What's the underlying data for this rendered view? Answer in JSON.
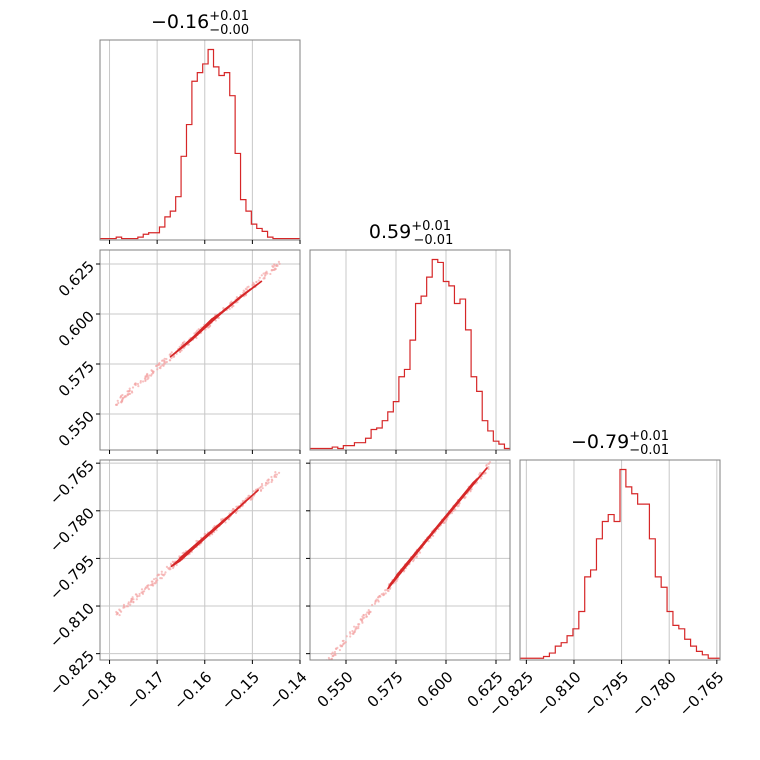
{
  "colors": {
    "line": "#d62728",
    "fill": "#f2b8b9",
    "grid": "#c8c8c8",
    "frame": "#808080",
    "points": "#f3a6a7"
  },
  "chart_data": {
    "type": "corner",
    "parameters": [
      {
        "median": "0.16",
        "median_sign": "−",
        "plus": "+0.01",
        "minus": "−0.00",
        "range": [
          -0.182,
          -0.14
        ],
        "ticks": [
          -0.18,
          -0.17,
          -0.16,
          -0.15,
          -0.14
        ],
        "tick_labels": [
          "−0.18",
          "−0.17",
          "−0.16",
          "−0.15",
          "−0.14"
        ],
        "hist_counts": [
          1,
          1,
          1,
          2,
          1,
          1,
          1,
          2,
          4,
          5,
          5,
          9,
          16,
          20,
          30,
          58,
          80,
          110,
          116,
          122,
          132,
          120,
          114,
          116,
          100,
          60,
          28,
          20,
          11,
          8,
          6,
          2,
          1,
          1,
          1,
          1,
          1
        ]
      },
      {
        "median": "0.59",
        "median_sign": "",
        "plus": "+0.01",
        "minus": "−0.01",
        "range": [
          0.532,
          0.632
        ],
        "ticks": [
          0.55,
          0.575,
          0.6,
          0.625
        ],
        "tick_labels": [
          "0.550",
          "0.575",
          "0.600",
          "0.625"
        ],
        "hist_counts": [
          1,
          1,
          1,
          1,
          2,
          1,
          3,
          3,
          5,
          5,
          8,
          14,
          15,
          20,
          26,
          33,
          50,
          55,
          75,
          100,
          105,
          118,
          130,
          128,
          115,
          112,
          100,
          103,
          82,
          50,
          40,
          20,
          13,
          6,
          4,
          1
        ]
      },
      {
        "median": "0.79",
        "median_sign": "−",
        "plus": "+0.01",
        "minus": "−0.01",
        "range": [
          -0.827,
          -0.764
        ],
        "ticks": [
          -0.825,
          -0.81,
          -0.795,
          -0.78,
          -0.765
        ],
        "tick_labels": [
          "−0.825",
          "−0.810",
          "−0.795",
          "−0.780",
          "−0.765"
        ],
        "hist_counts": [
          1,
          1,
          1,
          1,
          2,
          4,
          8,
          10,
          14,
          18,
          28,
          48,
          52,
          70,
          80,
          84,
          80,
          110,
          100,
          96,
          90,
          90,
          70,
          48,
          42,
          28,
          20,
          18,
          12,
          8,
          5,
          3,
          1,
          1
        ]
      }
    ],
    "pairs": [
      {
        "row": 1,
        "col": 0,
        "x_param": 0,
        "y_param": 1,
        "contours": [
          [
            [
              -0.1672,
              0.5786
            ],
            [
              -0.1601,
              0.5932
            ],
            [
              -0.1525,
              0.6087
            ],
            [
              -0.1481,
              0.6163
            ],
            [
              -0.1557,
              0.6025
            ],
            [
              -0.1629,
              0.5867
            ]
          ],
          [
            [
              -0.1652,
              0.5826
            ],
            [
              -0.1595,
              0.5947
            ],
            [
              -0.153,
              0.6076
            ],
            [
              -0.1505,
              0.6122
            ],
            [
              -0.1567,
              0.6
            ],
            [
              -0.1632,
              0.5863
            ]
          ],
          [
            [
              -0.1625,
              0.5882
            ],
            [
              -0.1593,
              0.5953
            ],
            [
              -0.156,
              0.6017
            ],
            [
              -0.1586,
              0.5973
            ]
          ]
        ]
      },
      {
        "row": 2,
        "col": 0,
        "x_param": 0,
        "y_param": 2,
        "contours": [
          [
            [
              -0.167,
              -0.7975
            ],
            [
              -0.1602,
              -0.7885
            ],
            [
              -0.1508,
              -0.7762
            ],
            [
              -0.1488,
              -0.7735
            ],
            [
              -0.1556,
              -0.7827
            ],
            [
              -0.1652,
              -0.7958
            ]
          ],
          [
            [
              -0.1652,
              -0.7949
            ],
            [
              -0.1594,
              -0.7874
            ],
            [
              -0.1526,
              -0.7786
            ],
            [
              -0.1512,
              -0.7767
            ],
            [
              -0.1566,
              -0.7842
            ],
            [
              -0.1636,
              -0.7935
            ]
          ],
          [
            [
              -0.1625,
              -0.7915
            ],
            [
              -0.1588,
              -0.7868
            ],
            [
              -0.155,
              -0.7818
            ],
            [
              -0.1582,
              -0.7862
            ]
          ]
        ]
      },
      {
        "row": 2,
        "col": 1,
        "x_param": 1,
        "y_param": 2,
        "contours": [
          [
            [
              0.571,
              -0.8045
            ],
            [
              0.5925,
              -0.7878
            ],
            [
              0.6175,
              -0.7688
            ],
            [
              0.6205,
              -0.7665
            ],
            [
              0.5975,
              -0.7835
            ],
            [
              0.5725,
              -0.8028
            ]
          ],
          [
            [
              0.5745,
              -0.8012
            ],
            [
              0.5925,
              -0.7873
            ],
            [
              0.6135,
              -0.7712
            ],
            [
              0.6155,
              -0.77
            ],
            [
              0.5945,
              -0.7858
            ],
            [
              0.5755,
              -0.8002
            ]
          ]
        ]
      }
    ]
  }
}
